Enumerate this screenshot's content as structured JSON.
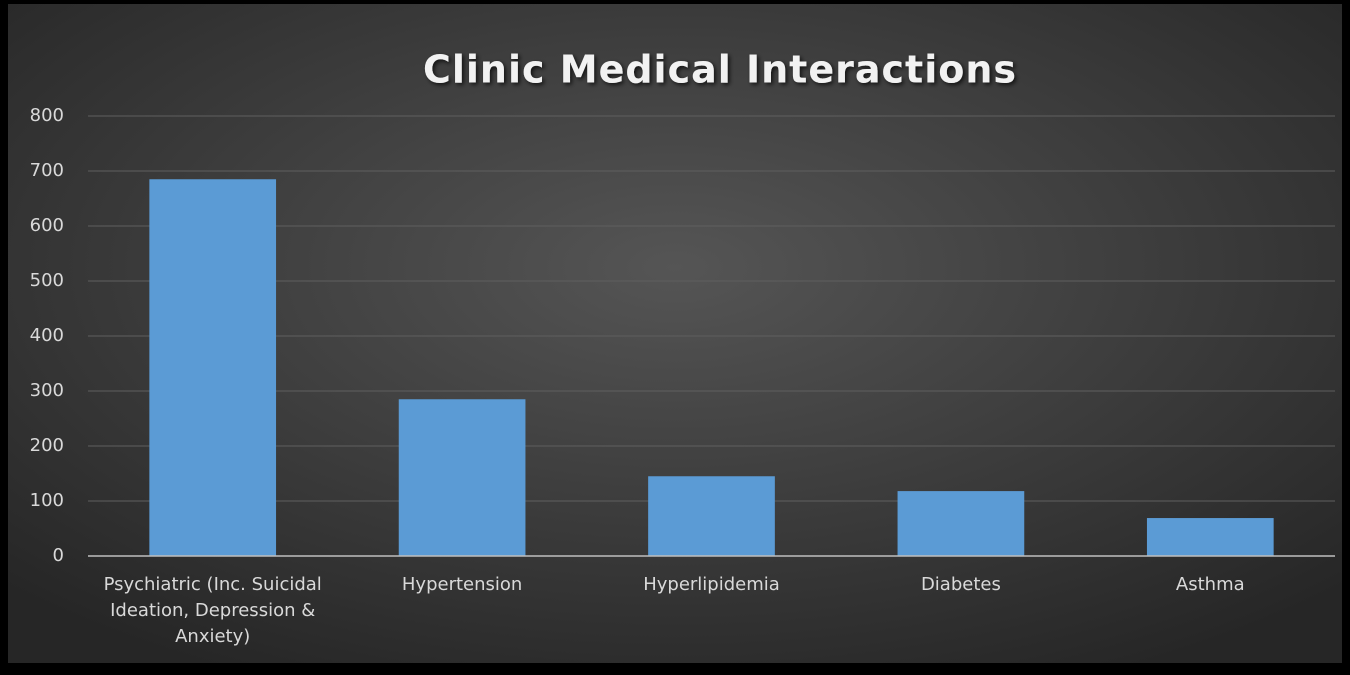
{
  "chart_data": {
    "type": "bar",
    "title": "Clinic Medical Interactions",
    "categories": [
      "Psychiatric (Inc. Suicidal Ideation, Depression & Anxiety)",
      "Hypertension",
      "Hyperlipidemia",
      "Diabetes",
      "Asthma"
    ],
    "values": [
      685,
      285,
      145,
      118,
      69
    ],
    "color": "#5b9bd5",
    "ylim": [
      0,
      800
    ],
    "yticks": [
      0,
      100,
      200,
      300,
      400,
      500,
      600,
      700,
      800
    ],
    "grid": true
  }
}
